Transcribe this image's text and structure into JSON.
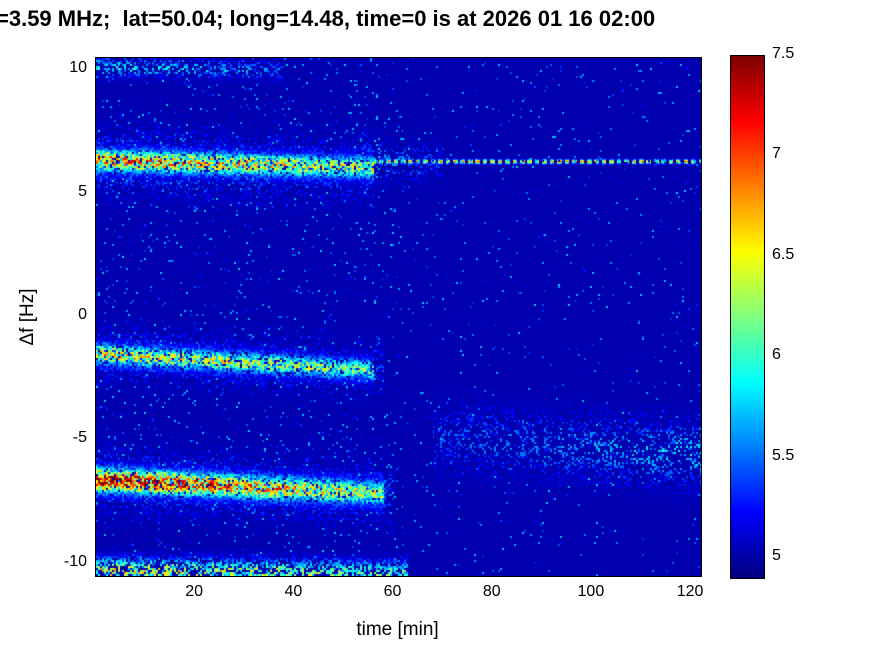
{
  "figure": {
    "background_color": "#ffffff"
  },
  "chart_data": {
    "type": "heatmap",
    "title": "=3.59 MHz;  lat=50.04; long=14.48, time=0 is at 2026 01 16 02:00",
    "xlabel": "time [min]",
    "ylabel": "Δf [Hz]",
    "xlim": [
      0,
      122
    ],
    "ylim": [
      -10.5,
      10.5
    ],
    "xticks": [
      20,
      40,
      60,
      80,
      100,
      120
    ],
    "yticks": [
      -10,
      -5,
      0,
      5,
      10
    ],
    "grid": false,
    "colormap": "jet",
    "background_value": 5.02,
    "colorbar": {
      "min": 4.9,
      "max": 7.5,
      "ticks": [
        5,
        5.5,
        6,
        6.5,
        7,
        7.5
      ],
      "position": "right"
    },
    "bands": [
      {
        "name": "doppler-trace-upper",
        "t0": 0,
        "t1": 56,
        "f0": 6.35,
        "f1": 6.05,
        "sigma": 0.3,
        "a0": 1.9,
        "a1": 1.35,
        "density": 0.85
      },
      {
        "name": "doppler-trace-upper-halo",
        "t0": 0,
        "t1": 56,
        "f0": 6.3,
        "f1": 5.9,
        "sigma": 0.85,
        "a0": 0.55,
        "a1": 0.4,
        "density": 0.3
      },
      {
        "name": "carrier-line",
        "t0": 56,
        "t1": 122,
        "f0": 6.3,
        "f1": 6.3,
        "sigma": 0.06,
        "a0": 1.7,
        "a1": 1.6,
        "density": 0.95,
        "dash_period": 1.5,
        "dash_duty": 0.62
      },
      {
        "name": "carrier-transition-speckle",
        "t0": 53,
        "t1": 70,
        "f0": 6.3,
        "f1": 6.3,
        "sigma": 0.5,
        "a0": 0.7,
        "a1": 0.3,
        "density": 0.3
      },
      {
        "name": "doppler-trace-middle",
        "t0": 0,
        "t1": 56,
        "f0": -1.5,
        "f1": -2.15,
        "sigma": 0.28,
        "a0": 1.6,
        "a1": 1.15,
        "density": 0.8
      },
      {
        "name": "doppler-trace-middle-halo",
        "t0": 0,
        "t1": 58,
        "f0": -1.5,
        "f1": -2.2,
        "sigma": 0.7,
        "a0": 0.5,
        "a1": 0.35,
        "density": 0.28
      },
      {
        "name": "doppler-trace-lower",
        "t0": 0,
        "t1": 58,
        "f0": -6.6,
        "f1": -7.15,
        "sigma": 0.32,
        "a0": 2.45,
        "a1": 1.35,
        "density": 0.88
      },
      {
        "name": "doppler-trace-lower-halo",
        "t0": 0,
        "t1": 60,
        "f0": -6.6,
        "f1": -7.2,
        "sigma": 0.8,
        "a0": 0.6,
        "a1": 0.4,
        "density": 0.3
      },
      {
        "name": "bottom-edge-band",
        "t0": 0,
        "t1": 63,
        "f0": -10.3,
        "f1": -10.45,
        "sigma": 0.35,
        "a0": 1.45,
        "a1": 1.1,
        "density": 0.6
      },
      {
        "name": "top-edge-speckle",
        "t0": 0,
        "t1": 38,
        "f0": 10.15,
        "f1": 10.0,
        "sigma": 0.25,
        "a0": 0.9,
        "a1": 0.5,
        "density": 0.35
      },
      {
        "name": "diffuse-late-cloud",
        "t0": 68,
        "t1": 122,
        "f0": -4.9,
        "f1": -5.6,
        "sigma": 0.85,
        "a0": 0.4,
        "a1": 0.75,
        "density": 0.28
      }
    ],
    "noise": {
      "speckle_prob_early": 0.04,
      "speckle_prob_late": 0.018,
      "speckle_t_split": 62,
      "speckle_amp_min": 0.15,
      "speckle_amp_max": 0.75
    }
  }
}
